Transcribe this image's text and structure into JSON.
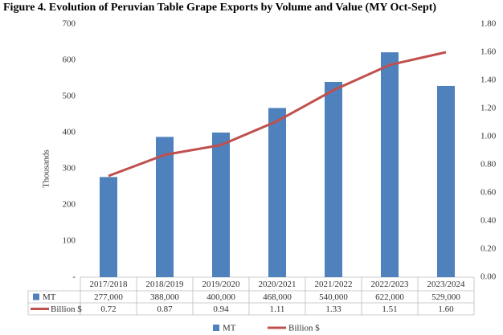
{
  "chart_data": {
    "type": "bar_line",
    "title": "Figure 4. Evolution of Peruvian Table Grape Exports by Volume and Value (MY Oct-Sept)",
    "y_label": "Thousands",
    "categories": [
      "2017/2018",
      "2018/2019",
      "2019/2020",
      "2020/2021",
      "2021/2022",
      "2022/2023",
      "2023/2024"
    ],
    "series": [
      {
        "name": "MT",
        "type": "bar",
        "color": "#4f81bd",
        "values": [
          277,
          388,
          400,
          468,
          540,
          622,
          529
        ],
        "value_labels": [
          "277,000",
          "388,000",
          "400,000",
          "468,000",
          "540,000",
          "622,000",
          "529,000"
        ]
      },
      {
        "name": "Billion $",
        "type": "line",
        "axis": "y2",
        "color": "#c0504d",
        "values": [
          0.72,
          0.87,
          0.94,
          1.11,
          1.33,
          1.51,
          1.6
        ],
        "value_labels": [
          "0.72",
          "0.87",
          "0.94",
          "1.11",
          "1.33",
          "1.51",
          "1.60"
        ]
      }
    ],
    "ylim": [
      0,
      700
    ],
    "yticks": [
      {
        "value": 0,
        "label": "-"
      },
      100,
      200,
      300,
      400,
      500,
      600,
      700
    ],
    "y2lim": [
      0,
      1.8
    ],
    "y2ticks": [
      {
        "value": 0,
        "label": "0.00"
      },
      {
        "value": 0.2,
        "label": "0.20"
      },
      {
        "value": 0.4,
        "label": "0.40"
      },
      {
        "value": 0.6,
        "label": "0.60"
      },
      {
        "value": 0.8,
        "label": "0.80"
      },
      {
        "value": 1,
        "label": "1.00"
      },
      {
        "value": 1.2,
        "label": "1.20"
      },
      {
        "value": 1.4,
        "label": "1.40"
      },
      {
        "value": 1.6,
        "label": "1.60"
      },
      {
        "value": 1.8,
        "label": "1.80"
      }
    ],
    "grid": false,
    "legend": "bottom"
  }
}
